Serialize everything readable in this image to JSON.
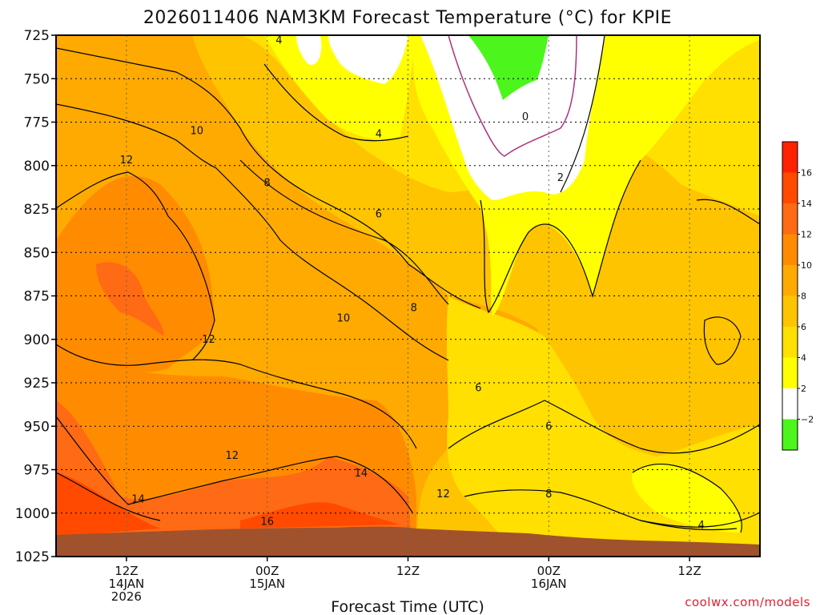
{
  "chart_data": {
    "type": "heatmap",
    "title": "2026011406 NAM3KM Forecast Temperature (°C) for KPIE",
    "xlabel": "Forecast Time (UTC)",
    "ylabel": "",
    "y_ticks": [
      "725",
      "750",
      "775",
      "800",
      "825",
      "850",
      "875",
      "900",
      "925",
      "950",
      "975",
      "1000",
      "1025"
    ],
    "y_values": [
      725,
      750,
      775,
      800,
      825,
      850,
      875,
      900,
      925,
      950,
      975,
      1000,
      1025
    ],
    "ylim": [
      1025,
      725
    ],
    "x_ticks": [
      {
        "hour": 6,
        "lines": [
          "12Z",
          "14JAN",
          "2026"
        ]
      },
      {
        "hour": 18,
        "lines": [
          "00Z",
          "15JAN"
        ]
      },
      {
        "hour": 30,
        "lines": [
          "12Z"
        ]
      },
      {
        "hour": 42,
        "lines": [
          "00Z",
          "16JAN"
        ]
      },
      {
        "hour": 54,
        "lines": [
          "12Z"
        ]
      }
    ],
    "xlim": [
      0,
      60
    ],
    "colorbar": {
      "levels": [
        -2,
        2,
        4,
        6,
        8,
        10,
        12,
        14,
        16
      ],
      "level_labels": [
        "−2",
        "2",
        "4",
        "6",
        "8",
        "10",
        "12",
        "14",
        "16"
      ],
      "colors": [
        "#4cf51c",
        "#ffffff",
        "#ffff00",
        "#ffe000",
        "#ffc400",
        "#ffaa00",
        "#ff8c00",
        "#ff6a14",
        "#ff4a00",
        "#ff2200"
      ]
    },
    "contour_labels": [
      {
        "text": "4",
        "hour": 19,
        "pressure": 728
      },
      {
        "text": "10",
        "hour": 12,
        "pressure": 780
      },
      {
        "text": "12",
        "hour": 6,
        "pressure": 797
      },
      {
        "text": "8",
        "hour": 18,
        "pressure": 810
      },
      {
        "text": "4",
        "hour": 27.5,
        "pressure": 782
      },
      {
        "text": "0",
        "hour": 40,
        "pressure": 772
      },
      {
        "text": "2",
        "hour": 43,
        "pressure": 807
      },
      {
        "text": "6",
        "hour": 27.5,
        "pressure": 828
      },
      {
        "text": "8",
        "hour": 30.5,
        "pressure": 882
      },
      {
        "text": "10",
        "hour": 24.5,
        "pressure": 888
      },
      {
        "text": "12",
        "hour": 13,
        "pressure": 900
      },
      {
        "text": "6",
        "hour": 36,
        "pressure": 928
      },
      {
        "text": "6",
        "hour": 42,
        "pressure": 950
      },
      {
        "text": "12",
        "hour": 15,
        "pressure": 967
      },
      {
        "text": "14",
        "hour": 26,
        "pressure": 977
      },
      {
        "text": "12",
        "hour": 33,
        "pressure": 989
      },
      {
        "text": "8",
        "hour": 42,
        "pressure": 989
      },
      {
        "text": "14",
        "hour": 7,
        "pressure": 992
      },
      {
        "text": "16",
        "hour": 18,
        "pressure": 1005
      },
      {
        "text": "4",
        "hour": 55,
        "pressure": 1007
      }
    ],
    "grid": true,
    "ground_color": "#a0522d"
  },
  "credit": "coolwx.com/models"
}
